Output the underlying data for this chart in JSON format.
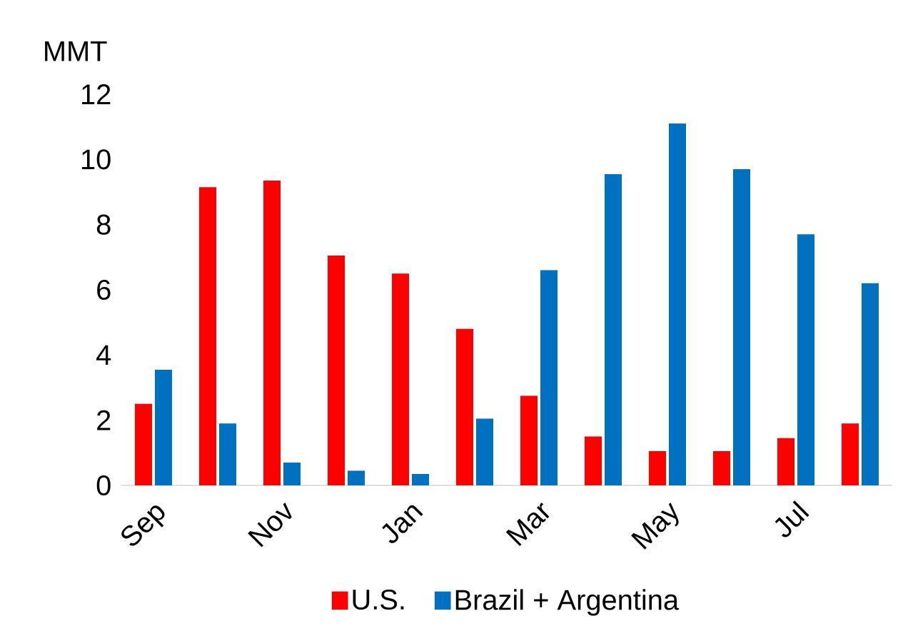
{
  "chart_data": {
    "type": "bar",
    "ylabel": "MMT",
    "categories": [
      "Sep",
      null,
      "Nov",
      null,
      "Jan",
      null,
      "Mar",
      null,
      "May",
      null,
      "Jul",
      null
    ],
    "series": [
      {
        "name": "U.S.",
        "color": "#ff0000",
        "values": [
          2.5,
          9.15,
          9.35,
          7.05,
          6.5,
          4.8,
          2.75,
          1.5,
          1.05,
          1.05,
          1.45,
          1.9
        ]
      },
      {
        "name": "Brazil + Argentina",
        "color": "#0070c0",
        "values": [
          3.55,
          1.9,
          0.7,
          0.45,
          0.35,
          2.05,
          6.6,
          9.55,
          11.1,
          9.7,
          7.7,
          6.2
        ]
      }
    ],
    "ylim": [
      0,
      12
    ],
    "yticks": [
      0,
      2,
      4,
      6,
      8,
      10,
      12
    ],
    "legend": "bottom",
    "grid": false
  }
}
